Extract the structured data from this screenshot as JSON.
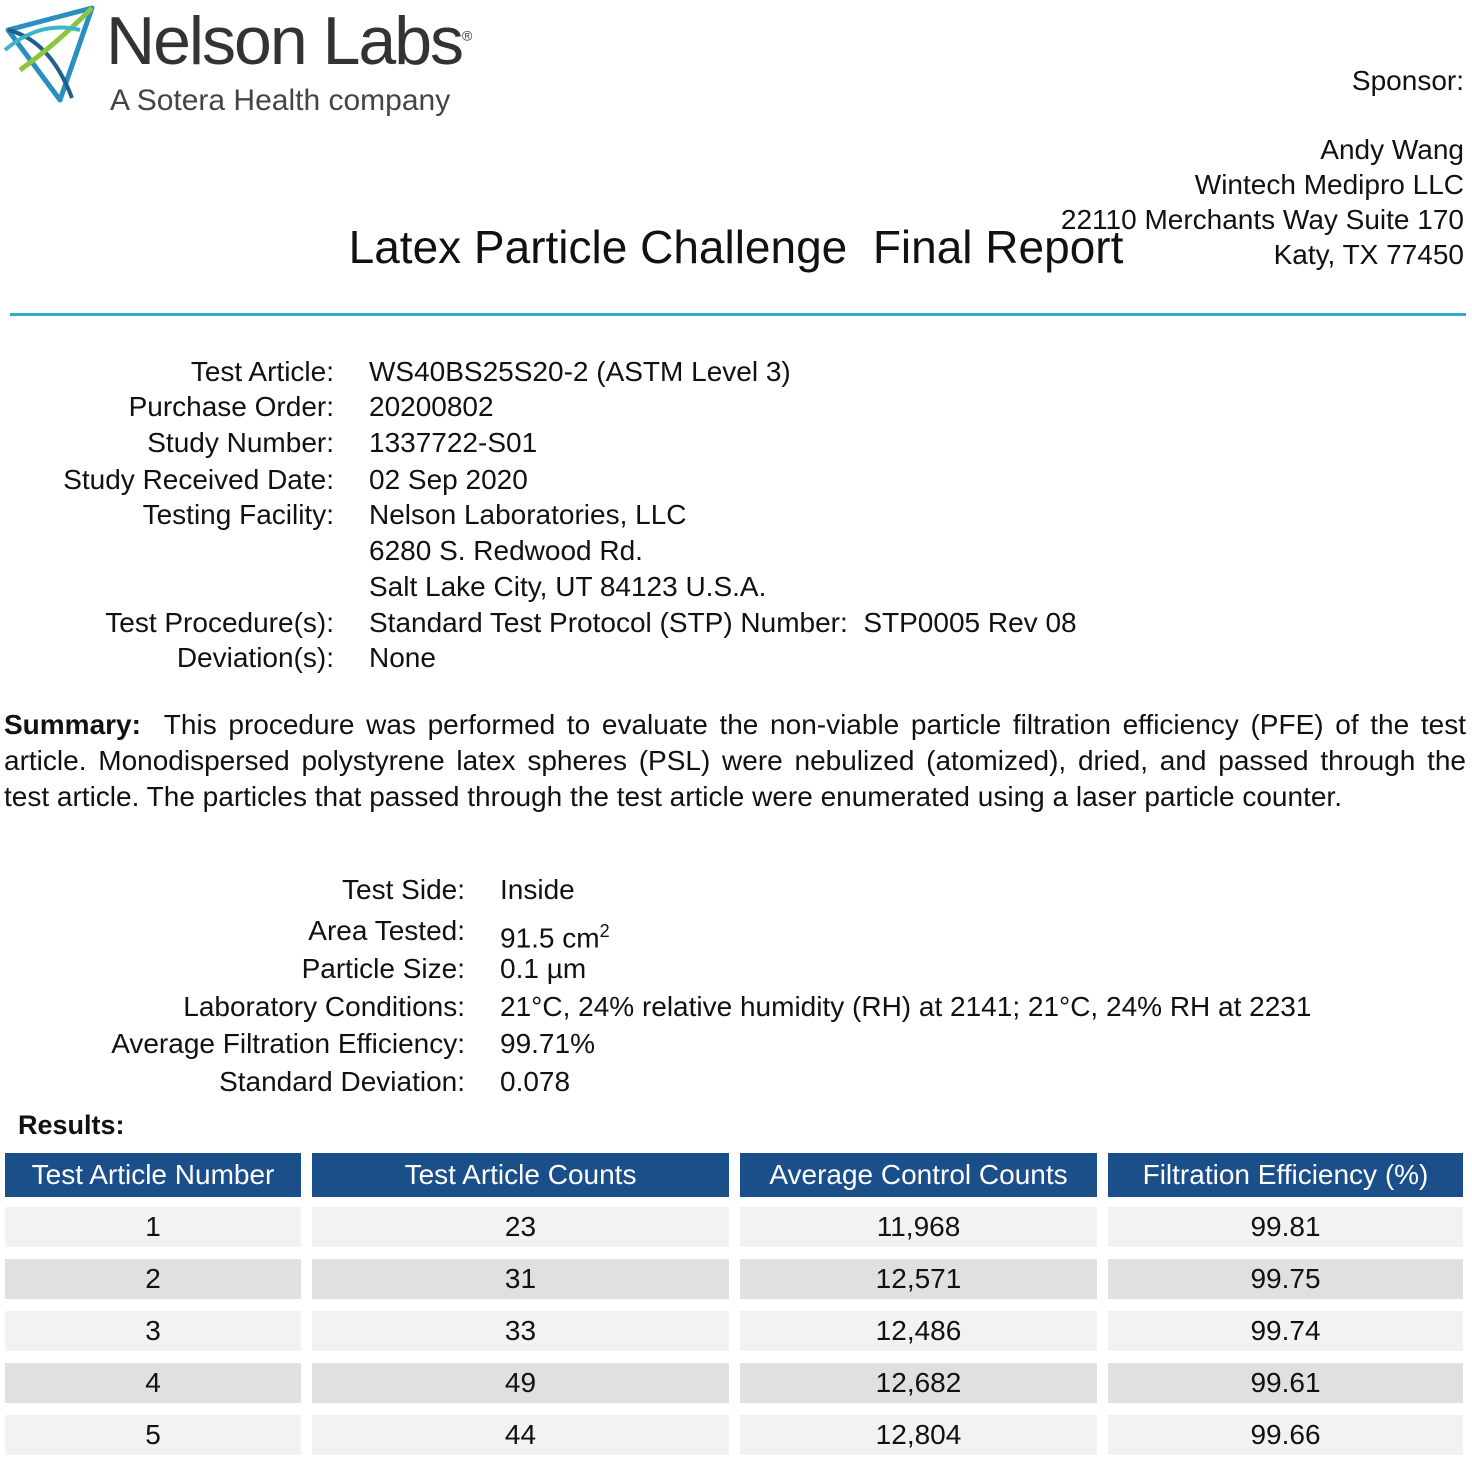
{
  "header": {
    "company": "Nelson Labs",
    "registered_mark": "®",
    "tagline": "A Sotera Health company",
    "sponsor": {
      "label": "Sponsor:",
      "lines": [
        "Andy Wang",
        "Wintech Medipro LLC",
        "22110 Merchants Way Suite 170",
        "Katy, TX 77450"
      ]
    }
  },
  "title": "Latex Particle Challenge  Final Report",
  "details": [
    {
      "label": "Test Article:",
      "value": [
        "WS40BS25S20-2 (ASTM Level 3)"
      ]
    },
    {
      "label": "Purchase Order:",
      "value": [
        "20200802"
      ]
    },
    {
      "label": "Study Number:",
      "value": [
        "1337722-S01"
      ]
    },
    {
      "label": "Study Received Date:",
      "value": [
        "02 Sep 2020"
      ]
    },
    {
      "label": "Testing Facility:",
      "value": [
        "Nelson Laboratories, LLC",
        "6280 S. Redwood Rd.",
        "Salt Lake City, UT 84123 U.S.A."
      ]
    },
    {
      "label": "Test Procedure(s):",
      "value": [
        "Standard Test Protocol (STP) Number:  STP0005 Rev 08"
      ]
    },
    {
      "label": "Deviation(s):",
      "value": [
        "None"
      ]
    }
  ],
  "summary": {
    "label": "Summary:",
    "text": "This procedure was performed to evaluate the non-viable particle filtration efficiency (PFE) of the test article.  Monodispersed polystyrene latex spheres (PSL) were nebulized (atomized), dried, and passed through the test article.  The particles that passed through the test article were enumerated using a laser particle counter."
  },
  "conditions": [
    {
      "label": "Test Side:",
      "value": "Inside"
    },
    {
      "label": "Area Tested:",
      "value": "91.5 cm",
      "superscript": "2"
    },
    {
      "label": "Particle Size:",
      "value": "0.1 µm"
    },
    {
      "label": "Laboratory Conditions:",
      "value": "21°C, 24% relative humidity (RH) at 2141; 21°C, 24% RH at 2231"
    },
    {
      "label": "Average Filtration Efficiency:",
      "value": "99.71%"
    },
    {
      "label": "Standard Deviation:",
      "value": "0.078"
    }
  ],
  "results": {
    "label": "Results:",
    "columns": [
      "Test Article Number",
      "Test Article Counts",
      "Average Control Counts",
      "Filtration Efficiency (%)"
    ],
    "rows": [
      [
        "1",
        "23",
        "11,968",
        "99.81"
      ],
      [
        "2",
        "31",
        "12,571",
        "99.75"
      ],
      [
        "3",
        "33",
        "12,486",
        "99.74"
      ],
      [
        "4",
        "49",
        "12,682",
        "99.61"
      ],
      [
        "5",
        "44",
        "12,804",
        "99.66"
      ]
    ]
  }
}
